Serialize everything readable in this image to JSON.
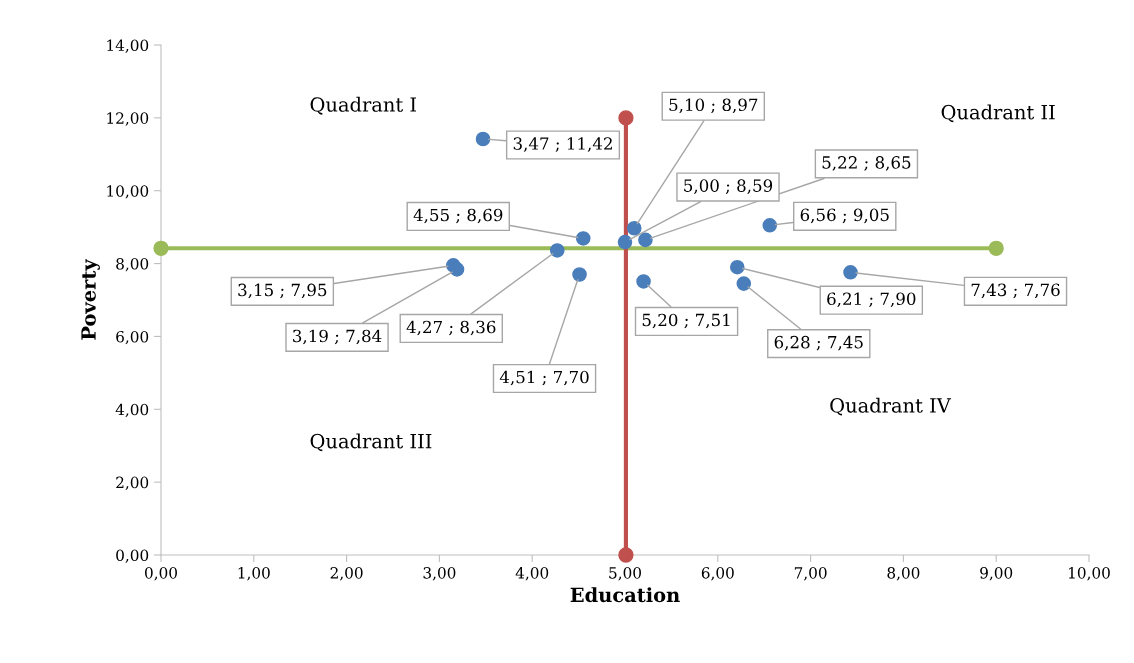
{
  "chart_data": {
    "type": "scatter",
    "xlabel": "Education",
    "ylabel": "Poverty",
    "xlim": [
      0,
      10
    ],
    "ylim": [
      0,
      14
    ],
    "xticks": [
      {
        "value": 0,
        "label": "0,00"
      },
      {
        "value": 1,
        "label": "1,00"
      },
      {
        "value": 2,
        "label": "2,00"
      },
      {
        "value": 3,
        "label": "3,00"
      },
      {
        "value": 4,
        "label": "4,00"
      },
      {
        "value": 5,
        "label": "5,00"
      },
      {
        "value": 6,
        "label": "6,00"
      },
      {
        "value": 7,
        "label": "7,00"
      },
      {
        "value": 8,
        "label": "8,00"
      },
      {
        "value": 9,
        "label": "9,00"
      },
      {
        "value": 10,
        "label": "10,00"
      }
    ],
    "yticks": [
      {
        "value": 0,
        "label": "0,00"
      },
      {
        "value": 2,
        "label": "2,00"
      },
      {
        "value": 4,
        "label": "4,00"
      },
      {
        "value": 6,
        "label": "6,00"
      },
      {
        "value": 8,
        "label": "8,00"
      },
      {
        "value": 10,
        "label": "10,00"
      },
      {
        "value": 12,
        "label": "12,00"
      },
      {
        "value": 14,
        "label": "14,00"
      }
    ],
    "marker": "circle",
    "series": [
      {
        "color": "#4a7ebb",
        "x": [
          3.47,
          5.1,
          5.22,
          5.0,
          4.55,
          6.56,
          3.15,
          3.19,
          4.27,
          4.51,
          5.2,
          6.21,
          6.28,
          7.43
        ],
        "values": [
          11.42,
          8.97,
          8.65,
          8.59,
          8.69,
          9.05,
          7.95,
          7.84,
          8.36,
          7.7,
          7.51,
          7.9,
          7.45,
          7.76
        ],
        "value_labels": [
          "3,47 ; 11,42",
          "5,10 ; 8,97",
          "5,22 ; 8,65",
          "5,00 ; 8,59",
          "4,55 ; 8,69",
          "6,56 ; 9,05",
          "3,15 ; 7,95",
          "3,19 ; 7,84",
          "4,27 ; 8,36",
          "4,51 ; 7,70",
          "5,20 ; 7,51",
          "6,21 ; 7,90",
          "6,28 ; 7,45",
          "7,43 ; 7,76"
        ]
      },
      {
        "type": "line",
        "color": "#9bbb59",
        "x": [
          0,
          9
        ],
        "values": [
          8.42,
          8.42
        ]
      },
      {
        "type": "line",
        "color": "#c0504d",
        "x": [
          5.01,
          5.01
        ],
        "values": [
          0,
          12
        ]
      }
    ],
    "annotations": [
      "Quadrant I",
      "Quadrant II",
      "Quadrant III",
      "Quadrant IV"
    ]
  }
}
